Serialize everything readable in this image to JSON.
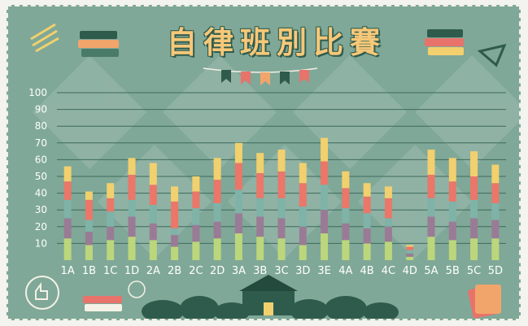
{
  "title": "自律班別比賽",
  "colors": {
    "board": "#7fa898",
    "segments": [
      "#bcd67c",
      "#9a7b95",
      "#7fb3a8",
      "#ea7769",
      "#f2d06d"
    ]
  },
  "chart_data": {
    "type": "bar",
    "stacked": true,
    "title": "",
    "xlabel": "",
    "ylabel": "",
    "ylim": [
      0,
      100
    ],
    "yticks": [
      10,
      20,
      30,
      40,
      50,
      60,
      70,
      80,
      90,
      100
    ],
    "grid": true,
    "categories": [
      "1A",
      "1B",
      "1C",
      "1D",
      "2A",
      "2B",
      "2C",
      "2D",
      "3A",
      "3B",
      "3C",
      "3D",
      "3E",
      "4A",
      "4B",
      "4C",
      "4D",
      "5A",
      "5B",
      "5C",
      "5D"
    ],
    "series": [
      {
        "values": [
          13,
          9,
          12,
          14,
          12,
          8,
          11,
          13,
          16,
          14,
          13,
          9,
          16,
          12,
          10,
          11,
          2,
          14,
          12,
          13,
          13
        ]
      },
      {
        "values": [
          12,
          8,
          8,
          12,
          10,
          7,
          10,
          10,
          12,
          12,
          12,
          11,
          14,
          10,
          9,
          9,
          2,
          12,
          11,
          12,
          11
        ]
      },
      {
        "values": [
          11,
          7,
          9,
          10,
          11,
          4,
          10,
          11,
          14,
          11,
          12,
          12,
          15,
          9,
          9,
          5,
          2,
          11,
          12,
          11,
          10
        ]
      },
      {
        "values": [
          11,
          12,
          8,
          15,
          12,
          16,
          10,
          14,
          16,
          15,
          16,
          14,
          14,
          12,
          10,
          12,
          2,
          14,
          12,
          14,
          12
        ]
      },
      {
        "values": [
          9,
          5,
          9,
          10,
          13,
          9,
          9,
          13,
          12,
          12,
          13,
          12,
          14,
          10,
          8,
          7,
          1,
          15,
          14,
          15,
          11
        ]
      }
    ]
  }
}
